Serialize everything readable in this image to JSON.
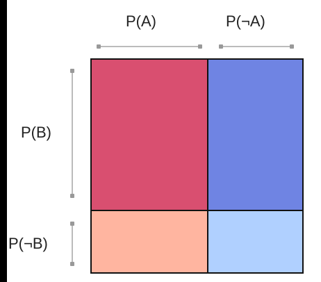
{
  "labels": {
    "p_a": "P(A)",
    "p_not_a": "P(¬A)",
    "p_b": "P(B)",
    "p_not_b": "P(¬B)"
  },
  "proportions": {
    "p_a": 0.55,
    "p_b": 0.71
  },
  "colors": {
    "a_and_b": "#d94f70",
    "not_a_and_b": "#6f84e3",
    "a_and_not_b": "#ffb5a0",
    "not_a_and_not_b": "#b0d0ff",
    "border": "#111111"
  }
}
